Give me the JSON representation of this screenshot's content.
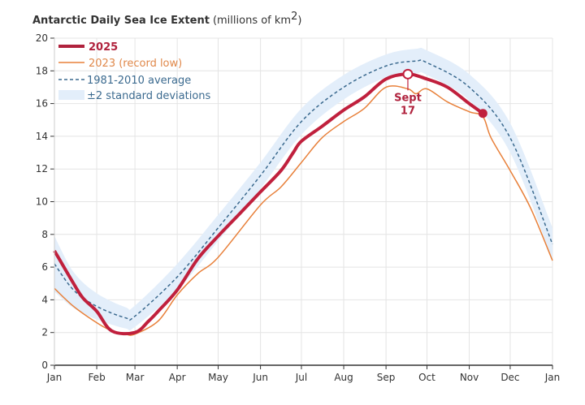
{
  "chart_data": {
    "type": "line",
    "title": "Antarctic Daily Sea Ice Extent",
    "title_units": "(millions of km",
    "title_units_sup": "2",
    "title_units_close": ")",
    "xlabel": "",
    "ylabel": "",
    "x_unit": "day of year",
    "xlim": [
      0,
      365
    ],
    "ylim": [
      0,
      20
    ],
    "yticks": [
      0,
      2,
      4,
      6,
      8,
      10,
      12,
      14,
      16,
      18,
      20
    ],
    "xticks": [
      {
        "label": "Jan",
        "day": 0
      },
      {
        "label": "Feb",
        "day": 31
      },
      {
        "label": "Mar",
        "day": 59
      },
      {
        "label": "Apr",
        "day": 90
      },
      {
        "label": "May",
        "day": 120
      },
      {
        "label": "Jun",
        "day": 151
      },
      {
        "label": "Jul",
        "day": 181
      },
      {
        "label": "Aug",
        "day": 212
      },
      {
        "label": "Sep",
        "day": 243
      },
      {
        "label": "Oct",
        "day": 273
      },
      {
        "label": "Nov",
        "day": 304
      },
      {
        "label": "Dec",
        "day": 334
      },
      {
        "label": "Jan",
        "day": 365
      }
    ],
    "grid": true,
    "legend_placement": "top-left",
    "colors": {
      "y2025": "#c0203d",
      "y2023": "#e8803a",
      "average": "#3b6a8f",
      "band": "#e3eefa"
    },
    "series": [
      {
        "name": "2025",
        "x": [
          0,
          14,
          21,
          31,
          42,
          59,
          69,
          76,
          90,
          105,
          120,
          135,
          151,
          166,
          175,
          181,
          196,
          212,
          227,
          243,
          259,
          273,
          288,
          304,
          314
        ],
        "y": [
          7.0,
          5.0,
          4.1,
          3.3,
          2.1,
          2.0,
          2.7,
          3.3,
          4.6,
          6.5,
          7.9,
          9.2,
          10.6,
          11.9,
          13.0,
          13.7,
          14.6,
          15.6,
          16.4,
          17.5,
          17.8,
          17.5,
          17.0,
          16.0,
          15.4
        ]
      },
      {
        "name": "2023 (record low)",
        "x": [
          0,
          14,
          31,
          42,
          52,
          59,
          76,
          90,
          105,
          120,
          151,
          166,
          181,
          196,
          212,
          227,
          243,
          259,
          265,
          273,
          288,
          304,
          314,
          320,
          334,
          349,
          365
        ],
        "y": [
          4.7,
          3.6,
          2.6,
          2.1,
          1.9,
          1.9,
          2.7,
          4.3,
          5.6,
          6.6,
          9.8,
          10.9,
          12.4,
          13.9,
          14.9,
          15.7,
          17.0,
          16.9,
          16.6,
          16.9,
          16.1,
          15.5,
          15.2,
          13.9,
          11.9,
          9.6,
          6.4
        ]
      },
      {
        "name": "1981-2010 average",
        "x": [
          0,
          14,
          31,
          52,
          59,
          90,
          120,
          151,
          181,
          212,
          243,
          265,
          273,
          304,
          334,
          365
        ],
        "y": [
          6.2,
          4.6,
          3.6,
          2.9,
          3.0,
          5.4,
          8.4,
          11.6,
          14.9,
          17.0,
          18.3,
          18.6,
          18.5,
          17.0,
          13.9,
          7.4
        ],
        "sd2": [
          1.7,
          1.1,
          0.8,
          0.65,
          0.65,
          0.8,
          0.8,
          0.8,
          0.8,
          0.75,
          0.7,
          0.75,
          0.75,
          0.8,
          0.9,
          1.0
        ]
      }
    ],
    "legend": {
      "y2025": "2025",
      "y2023": "2023 (record low)",
      "average": "1981-2010 average",
      "band": "±2 standard deviations"
    },
    "annotation": {
      "label_line1": "Sept",
      "label_line2": "17",
      "day": 259,
      "value": 17.8
    },
    "end_point": {
      "day": 314,
      "value": 15.4
    }
  }
}
